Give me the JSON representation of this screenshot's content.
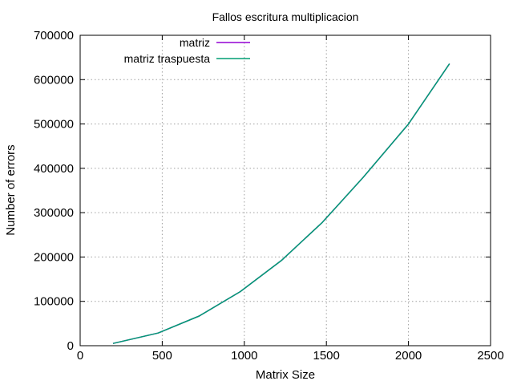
{
  "chart_data": {
    "type": "line",
    "title": "Fallos escritura multiplicacion",
    "xlabel": "Matrix Size",
    "ylabel": "Number of errors",
    "xlim": [
      0,
      2500
    ],
    "ylim": [
      0,
      700000
    ],
    "xticks": [
      0,
      500,
      1000,
      1500,
      2000,
      2500
    ],
    "yticks": [
      0,
      100000,
      200000,
      300000,
      400000,
      500000,
      600000,
      700000
    ],
    "grid": true,
    "legend_position": "top-left",
    "series": [
      {
        "name": "matriz",
        "color": "#9400d3",
        "x": [
          200,
          475,
          725,
          975,
          1225,
          1475,
          1725,
          2000,
          2250
        ],
        "y": [
          5000,
          28500,
          67000,
          122000,
          192000,
          278000,
          380000,
          500000,
          636000
        ]
      },
      {
        "name": "matriz traspuesta",
        "color": "#009e73",
        "x": [
          200,
          475,
          725,
          975,
          1225,
          1475,
          1725,
          2000,
          2250
        ],
        "y": [
          5000,
          28500,
          67000,
          122000,
          192000,
          278000,
          380000,
          500000,
          636000
        ]
      }
    ]
  }
}
